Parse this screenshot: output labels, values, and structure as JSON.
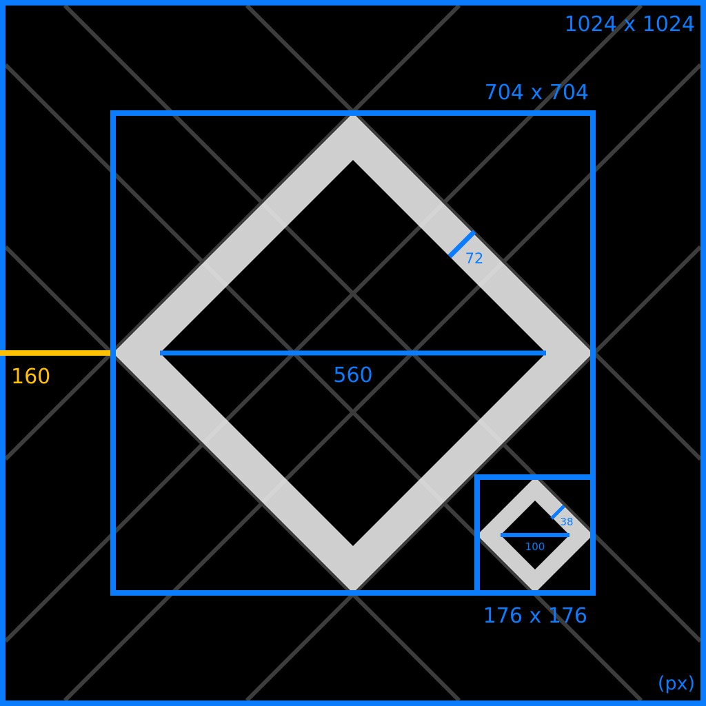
{
  "labels": {
    "canvas_size": "1024 x 1024",
    "outer_box_size": "704 x 704",
    "small_box_size": "176 x 176",
    "stroke_large": "72",
    "width_large": "560",
    "stroke_small": "38",
    "width_small": "100",
    "offset": "160",
    "unit": "(px)"
  },
  "colors": {
    "background": "#000000",
    "guide": "#3c3c3c",
    "accent": "#0a7cff",
    "offset": "#ffc000",
    "shape": "#e6e6e6"
  }
}
